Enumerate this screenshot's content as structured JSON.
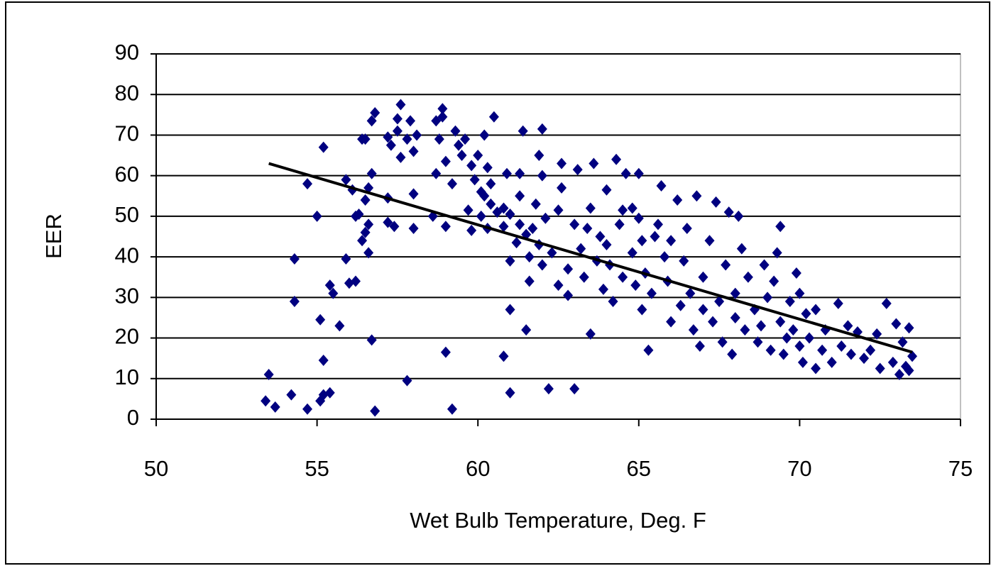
{
  "chart_data": {
    "type": "scatter",
    "x_label": "Wet Bulb Temperature, Deg. F",
    "y_label": "EER",
    "color": "#000080",
    "trend_color": "#000000",
    "grid": true,
    "xlim": [
      50,
      75
    ],
    "xticks": [
      50,
      55,
      60,
      65,
      70,
      75
    ],
    "ylim": [
      0,
      90
    ],
    "yticks": [
      0,
      10,
      20,
      30,
      40,
      50,
      60,
      70,
      80,
      90
    ],
    "x": [
      53.4,
      53.5,
      53.7,
      54.2,
      54.3,
      54.3,
      54.7,
      54.7,
      55,
      55.1,
      55.1,
      55.2,
      55.2,
      55.2,
      55.4,
      55.4,
      55.5,
      55.7,
      55.9,
      55.9,
      56,
      56.1,
      56.2,
      56.2,
      56.3,
      56.4,
      56.4,
      56.5,
      56.5,
      56.6,
      56.6,
      56.6,
      56.5,
      56.7,
      56.7,
      56.7,
      56.8,
      56.8,
      57.2,
      57.2,
      57.2,
      57.3,
      57.4,
      57.5,
      57.5,
      57.6,
      57.6,
      57.8,
      57.8,
      57.9,
      58,
      58,
      58,
      58.1,
      58.6,
      58.7,
      58.7,
      58.8,
      58.9,
      58.9,
      59,
      59,
      59,
      59.2,
      59.2,
      59.3,
      59.4,
      59.5,
      59.6,
      59.7,
      59.8,
      59.8,
      59.9,
      60,
      60.1,
      60.1,
      60.2,
      60.2,
      60.3,
      60.3,
      60.4,
      60.4,
      60.5,
      60.6,
      60.8,
      60.8,
      60.8,
      60.9,
      61,
      61,
      61,
      61,
      61.2,
      61.3,
      61.3,
      61.3,
      61.4,
      61.5,
      61.5,
      61.6,
      61.6,
      61.7,
      61.8,
      61.9,
      61.9,
      62,
      62,
      62,
      62.1,
      62.2,
      62.3,
      62.5,
      62.5,
      62.6,
      62.6,
      62.8,
      62.8,
      63,
      63,
      63.1,
      63.2,
      63.3,
      63.4,
      63.5,
      63.5,
      63.6,
      63.7,
      63.8,
      63.9,
      64,
      64,
      64.1,
      64.2,
      64.3,
      64.4,
      64.5,
      64.5,
      64.6,
      64.8,
      64.8,
      64.9,
      65,
      65,
      65.1,
      65.1,
      65.2,
      65.3,
      65.4,
      65.5,
      65.6,
      65.7,
      65.8,
      65.9,
      66,
      66,
      66.2,
      66.3,
      66.4,
      66.5,
      66.6,
      66.7,
      66.8,
      66.9,
      67,
      67,
      67.2,
      67.3,
      67.4,
      67.5,
      67.6,
      67.7,
      67.8,
      67.9,
      68,
      68,
      68.1,
      68.2,
      68.3,
      68.4,
      68.6,
      68.7,
      68.8,
      68.9,
      69,
      69.1,
      69.2,
      69.3,
      69.4,
      69.4,
      69.5,
      69.6,
      69.7,
      69.8,
      69.9,
      70,
      70,
      70.1,
      70.2,
      70.3,
      70.5,
      70.5,
      70.7,
      70.8,
      71,
      71.2,
      71.3,
      71.5,
      71.6,
      71.8,
      72,
      72.2,
      72.4,
      72.5,
      72.7,
      72.9,
      73,
      73.1,
      73.2,
      73.3,
      73.4,
      73.5,
      73.4
    ],
    "values": [
      4.5,
      11,
      3,
      6,
      39.5,
      29,
      2.5,
      58,
      50,
      24.5,
      4.5,
      14.5,
      6,
      67,
      6.5,
      33,
      31,
      23,
      59,
      39.5,
      33.5,
      56.5,
      34,
      50,
      50.5,
      69,
      44,
      46,
      54,
      48,
      57,
      41,
      69,
      73.5,
      60.5,
      19.5,
      75.5,
      2,
      54.5,
      48.5,
      69.5,
      67.5,
      47.5,
      71,
      74,
      77.5,
      64.5,
      69,
      9.5,
      73.5,
      66,
      55.5,
      47,
      70,
      50,
      60.5,
      73.5,
      69,
      74.5,
      76.5,
      47.5,
      16.5,
      63.5,
      58,
      2.5,
      71,
      67.5,
      65,
      69,
      51.5,
      46.5,
      62.5,
      59,
      65,
      56,
      50,
      70,
      55,
      62,
      47,
      53,
      58,
      74.5,
      51,
      47.5,
      52,
      15.5,
      60.5,
      39,
      50.5,
      6.5,
      27,
      43.5,
      60.5,
      48,
      55,
      71,
      22,
      45.5,
      40,
      34,
      47,
      53,
      43,
      65,
      38,
      71.5,
      60,
      49.5,
      7.5,
      41,
      51.5,
      33,
      57,
      63,
      37,
      30.5,
      48,
      7.5,
      61.5,
      42,
      35,
      47,
      52,
      21,
      63,
      39,
      45,
      32,
      56.5,
      43,
      38,
      29,
      64,
      48,
      51.5,
      35,
      60.5,
      52,
      41,
      33,
      60.5,
      49.5,
      44,
      27,
      36,
      17,
      31,
      45,
      48,
      57.5,
      40,
      34,
      24,
      44,
      54,
      28,
      39,
      47,
      31,
      22,
      55,
      18,
      35,
      27,
      44,
      24,
      53.5,
      29,
      19,
      38,
      51,
      16,
      25,
      31,
      50,
      42,
      22,
      35,
      27,
      19,
      23,
      38,
      30,
      17,
      34,
      41,
      47.5,
      24,
      16,
      20,
      29,
      22,
      36,
      31,
      18,
      14,
      26,
      20,
      27,
      12.5,
      17,
      22,
      14,
      28.5,
      18,
      23,
      16,
      21.5,
      15,
      17,
      21,
      12.5,
      28.5,
      14,
      23.5,
      11,
      19,
      13,
      22.5,
      15.5,
      12
    ],
    "trendline": {
      "x": [
        53.5,
        73.5
      ],
      "values": [
        63,
        16.5
      ]
    }
  }
}
